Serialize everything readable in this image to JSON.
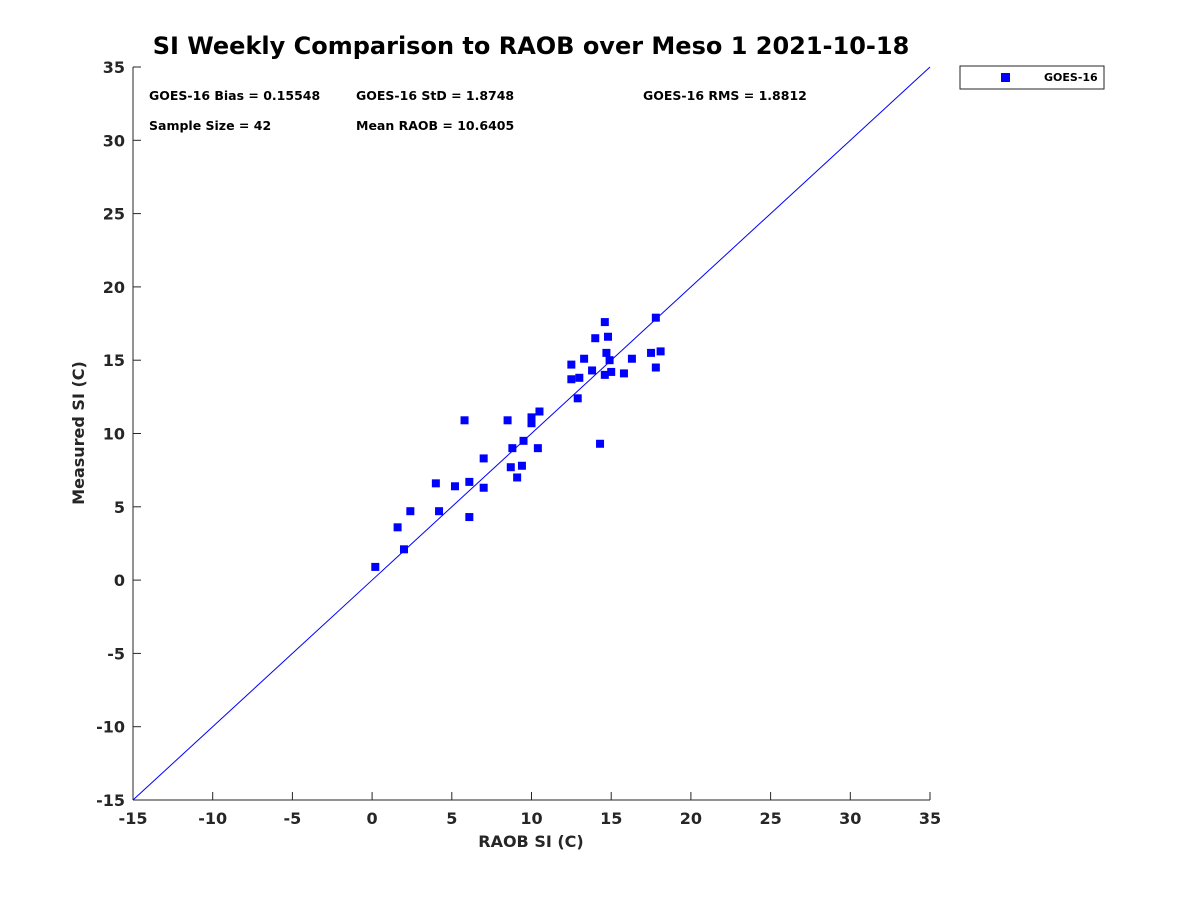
{
  "chart_data": {
    "type": "scatter",
    "title": "SI Weekly Comparison to RAOB over Meso 1 2021-10-18",
    "xlabel": "RAOB SI (C)",
    "ylabel": "Measured SI (C)",
    "xlim": [
      -15,
      35
    ],
    "ylim": [
      -15,
      35
    ],
    "xticks": [
      -15,
      -10,
      -5,
      0,
      5,
      10,
      15,
      20,
      25,
      30,
      35
    ],
    "yticks": [
      -15,
      -10,
      -5,
      0,
      5,
      10,
      15,
      20,
      25,
      30,
      35
    ],
    "grid": false,
    "legend_position": "outside-top-right",
    "reference_line": {
      "name": "1:1 line",
      "from": [
        -15,
        -15
      ],
      "to": [
        35,
        35
      ],
      "color": "#0000ff"
    },
    "stats": {
      "bias": "GOES-16 Bias = 0.15548",
      "std": "GOES-16 StD = 1.8748",
      "rms": "GOES-16 RMS = 1.8812",
      "sample_size": "Sample Size = 42",
      "mean_raob": "Mean RAOB = 10.6405"
    },
    "series": [
      {
        "name": "GOES-16",
        "color": "#0000ff",
        "marker": "square",
        "points": [
          [
            0.2,
            0.9
          ],
          [
            1.6,
            3.6
          ],
          [
            2.0,
            2.1
          ],
          [
            2.4,
            4.7
          ],
          [
            4.0,
            6.6
          ],
          [
            4.2,
            4.7
          ],
          [
            5.2,
            6.4
          ],
          [
            5.8,
            10.9
          ],
          [
            6.1,
            6.7
          ],
          [
            6.1,
            4.3
          ],
          [
            7.0,
            8.3
          ],
          [
            7.0,
            6.3
          ],
          [
            8.5,
            10.9
          ],
          [
            8.7,
            7.7
          ],
          [
            8.8,
            9.0
          ],
          [
            9.1,
            7.0
          ],
          [
            9.4,
            7.8
          ],
          [
            9.5,
            9.5
          ],
          [
            10.0,
            10.7
          ],
          [
            10.0,
            11.1
          ],
          [
            10.4,
            9.0
          ],
          [
            10.5,
            11.5
          ],
          [
            12.5,
            14.7
          ],
          [
            12.5,
            13.7
          ],
          [
            12.9,
            12.4
          ],
          [
            13.0,
            13.8
          ],
          [
            13.3,
            15.1
          ],
          [
            13.8,
            14.3
          ],
          [
            14.0,
            16.5
          ],
          [
            14.3,
            9.3
          ],
          [
            14.6,
            17.6
          ],
          [
            14.6,
            14.0
          ],
          [
            14.7,
            15.5
          ],
          [
            14.8,
            16.6
          ],
          [
            14.9,
            15.0
          ],
          [
            15.0,
            14.2
          ],
          [
            15.8,
            14.1
          ],
          [
            16.3,
            15.1
          ],
          [
            17.5,
            15.5
          ],
          [
            17.8,
            17.9
          ],
          [
            17.8,
            14.5
          ],
          [
            18.1,
            15.6
          ]
        ]
      }
    ]
  }
}
